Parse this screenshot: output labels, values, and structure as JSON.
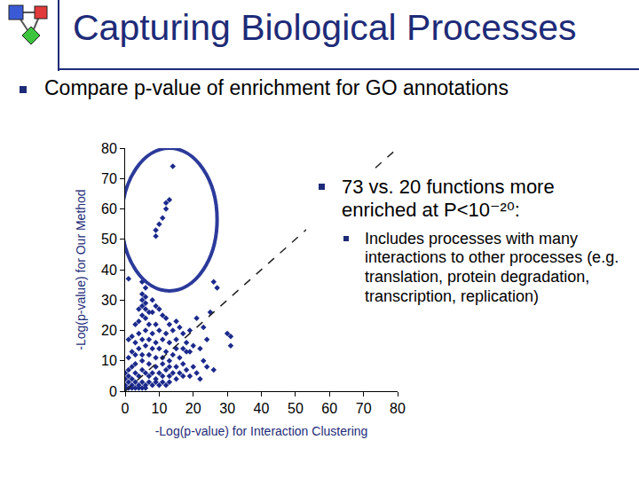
{
  "chart_data": {
    "type": "scatter",
    "title": "Capturing Biological Processes",
    "subtitle": "Compare p-value of enrichment for GO annotations",
    "x_label": "-Log(p-value) for Interaction Clustering",
    "y_label": "-Log(p-value) for Our Method",
    "xlim": [
      0,
      80
    ],
    "ylim": [
      0,
      80
    ],
    "xticks": [
      0,
      10,
      20,
      30,
      40,
      50,
      60,
      70,
      80
    ],
    "yticks": [
      0,
      10,
      20,
      30,
      40,
      50,
      60,
      70,
      80
    ],
    "grid": false,
    "series": [
      {
        "type": "scatter",
        "marker": "diamond",
        "color": "#1c2a8c",
        "x": [
          14,
          12,
          13,
          12,
          11,
          10,
          9,
          9,
          1,
          26,
          27,
          5,
          6,
          5,
          6,
          5,
          6,
          5,
          4,
          6,
          7,
          5,
          6,
          4,
          8,
          9,
          8,
          10,
          11,
          12,
          3,
          7,
          9,
          13,
          15,
          16,
          19,
          21,
          23,
          25,
          24,
          31,
          31,
          30,
          17,
          14,
          12,
          10,
          8,
          6,
          4,
          2,
          1,
          3,
          5,
          7,
          9,
          11,
          13,
          15,
          18,
          20,
          22,
          19,
          17,
          15,
          14,
          12,
          10,
          8,
          6,
          4,
          2,
          1,
          3,
          5,
          7,
          9,
          11,
          13,
          16,
          18,
          23,
          17,
          15,
          13,
          11,
          9,
          7,
          5,
          3,
          2,
          1,
          0,
          1,
          2,
          3,
          4,
          5,
          6,
          7,
          8,
          9,
          10,
          11,
          12,
          13,
          14,
          16,
          18,
          20,
          1,
          2,
          3,
          4,
          5,
          6,
          7,
          8,
          9,
          10,
          11,
          12,
          13,
          15,
          17,
          19,
          21,
          24,
          0,
          0,
          1,
          2,
          3,
          4,
          5,
          6,
          0,
          22,
          26
        ],
        "values": [
          74,
          62,
          63,
          60,
          57,
          55,
          53,
          51,
          37,
          36,
          34,
          36,
          34,
          32,
          31,
          30,
          29,
          28,
          27,
          27,
          26,
          25,
          24,
          23,
          30,
          28,
          26,
          27,
          25,
          24,
          22,
          22,
          22,
          22,
          23,
          21,
          20,
          24,
          21,
          26,
          17,
          18,
          15,
          19,
          19,
          20,
          19,
          20,
          19,
          20,
          19,
          18,
          17,
          16,
          17,
          17,
          16,
          17,
          16,
          17,
          16,
          15,
          14,
          13,
          14,
          14,
          12,
          13,
          14,
          14,
          15,
          14,
          13,
          11,
          12,
          12,
          12,
          11,
          11,
          10,
          11,
          13,
          10,
          9,
          8,
          8,
          9,
          8,
          9,
          10,
          9,
          8,
          7,
          6,
          5,
          4,
          6,
          5,
          7,
          6,
          5,
          6,
          4,
          6,
          5,
          7,
          5,
          6,
          6,
          7,
          8,
          3,
          2,
          3,
          2,
          3,
          2,
          3,
          2,
          3,
          2,
          3,
          2,
          3,
          4,
          5,
          5,
          6,
          8,
          2,
          4,
          1,
          1,
          1,
          1,
          1,
          1,
          1,
          4,
          7
        ]
      },
      {
        "type": "line",
        "line_style": "dashed",
        "color": "#222222",
        "x": [
          0,
          80
        ],
        "values": [
          0,
          80
        ]
      }
    ],
    "annotations": [
      {
        "text": "73 vs. 20 functions more enriched at P<10⁻²⁰:",
        "items": [
          "Includes processes with many interactions to other processes (e.g. translation, protein degradation, transcription, replication)"
        ]
      }
    ]
  }
}
